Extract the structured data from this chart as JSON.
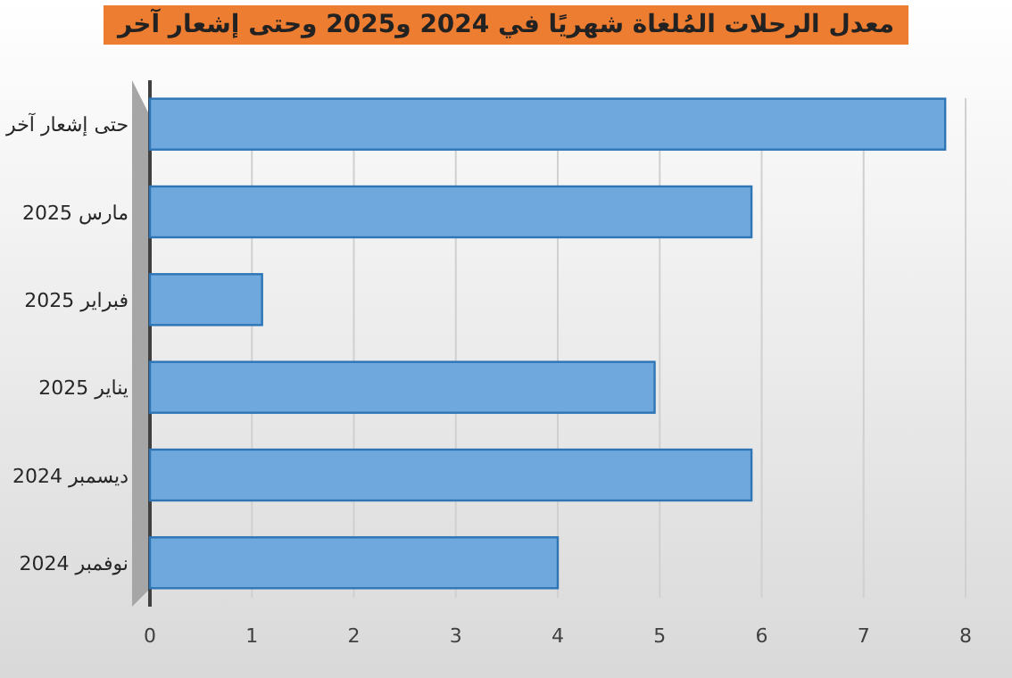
{
  "chart_data": {
    "type": "bar",
    "orientation": "horizontal",
    "title": "معدل الرحلات المُلغاة شهريًا في 2024 و2025 وحتى إشعار آخر",
    "categories": [
      "حتى إشعار آخر",
      "مارس 2025",
      "فبراير 2025",
      "يناير 2025",
      "ديسمبر 2024",
      "نوفمبر 2024"
    ],
    "values": [
      7.8,
      5.9,
      1.1,
      4.95,
      5.9,
      4
    ],
    "color": "#6fa8dc",
    "xlim": [
      0,
      8
    ],
    "xticks": [
      0,
      1,
      2,
      3,
      4,
      5,
      6,
      7,
      8
    ],
    "grid": "x"
  }
}
